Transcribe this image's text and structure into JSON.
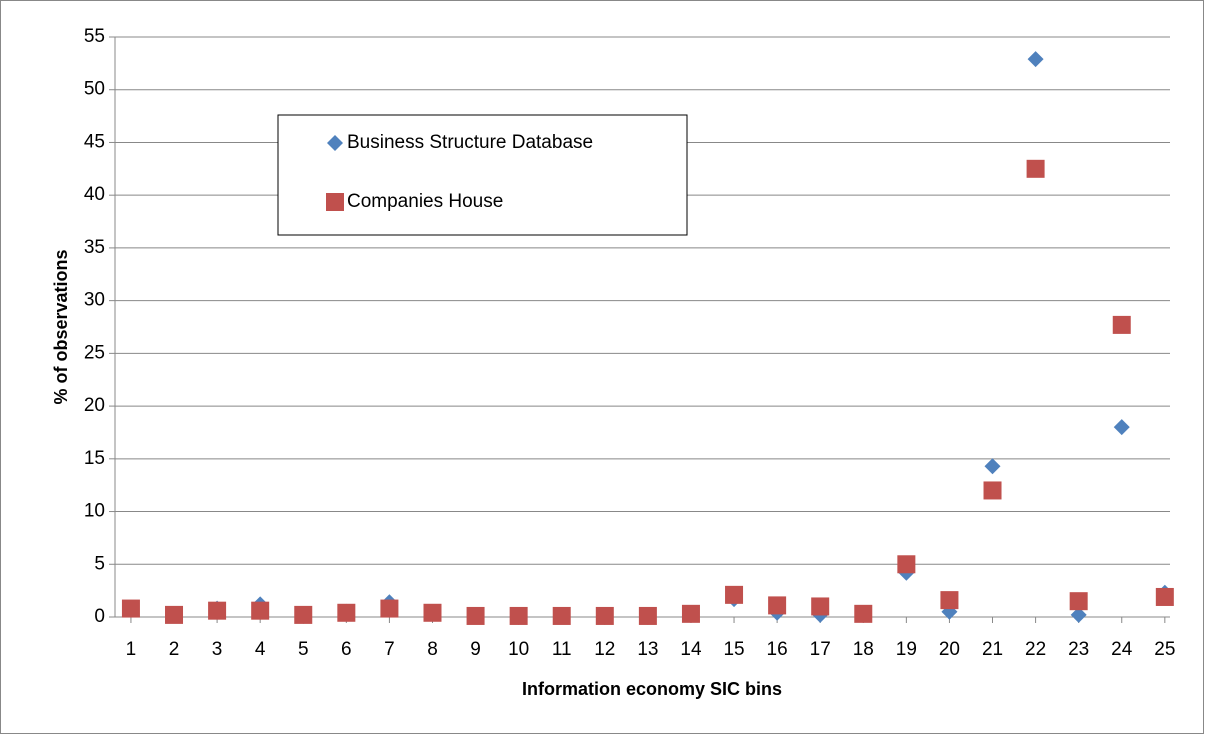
{
  "chart_data": {
    "type": "scatter",
    "x_label": "Information economy SIC bins",
    "y_label": "% of observations",
    "x": [
      1,
      2,
      3,
      4,
      5,
      6,
      7,
      8,
      9,
      10,
      11,
      12,
      13,
      14,
      15,
      16,
      17,
      18,
      19,
      20,
      21,
      22,
      23,
      24,
      25
    ],
    "series": [
      {
        "name": "Business Structure Database",
        "color": "#4f81bd",
        "marker": "diamond",
        "values": [
          0.7,
          0.2,
          0.8,
          1.2,
          0.1,
          0.5,
          1.4,
          0.4,
          0.1,
          0.0,
          0.1,
          0.0,
          0.0,
          0.2,
          1.7,
          0.4,
          0.2,
          0.3,
          4.2,
          0.5,
          14.3,
          52.9,
          0.2,
          18.0,
          2.3
        ]
      },
      {
        "name": "Companies House",
        "color": "#c0504d",
        "marker": "square",
        "values": [
          0.8,
          0.2,
          0.6,
          0.6,
          0.2,
          0.4,
          0.8,
          0.4,
          0.1,
          0.1,
          0.1,
          0.1,
          0.1,
          0.3,
          2.1,
          1.1,
          1.0,
          0.3,
          5.0,
          1.6,
          12.0,
          42.5,
          1.5,
          27.7,
          1.9
        ]
      }
    ],
    "xlim": [
      0.63,
      25.12
    ],
    "xticks": [
      1,
      2,
      3,
      4,
      5,
      6,
      7,
      8,
      9,
      10,
      11,
      12,
      13,
      14,
      15,
      16,
      17,
      18,
      19,
      20,
      21,
      22,
      23,
      24,
      25
    ],
    "ylim": [
      0,
      55
    ],
    "yticks": [
      0,
      5,
      10,
      15,
      20,
      25,
      30,
      35,
      40,
      45,
      50,
      55
    ],
    "grid": true,
    "legend": "top-left"
  }
}
